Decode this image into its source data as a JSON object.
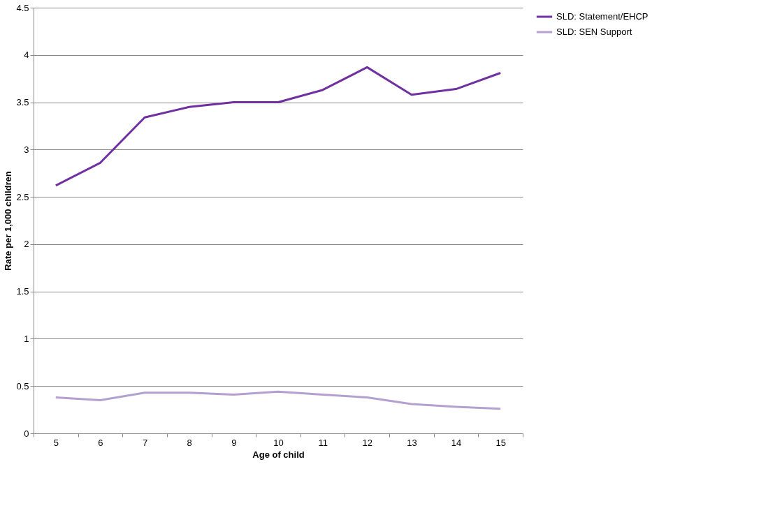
{
  "chart_data": {
    "type": "line",
    "xlabel": "Age of child",
    "ylabel": "Rate per 1,000 children",
    "categories": [
      "5",
      "6",
      "7",
      "8",
      "9",
      "10",
      "11",
      "12",
      "13",
      "14",
      "15"
    ],
    "series": [
      {
        "name": "SLD: Statement/EHCP",
        "color": "#7030a0",
        "values": [
          2.62,
          2.86,
          3.34,
          3.45,
          3.5,
          3.5,
          3.63,
          3.87,
          3.58,
          3.64,
          3.81
        ]
      },
      {
        "name": "SLD: SEN Support",
        "color": "#b4a0d0",
        "values": [
          0.38,
          0.35,
          0.43,
          0.43,
          0.41,
          0.44,
          0.41,
          0.38,
          0.31,
          0.28,
          0.26
        ]
      }
    ],
    "ylim": [
      0,
      4.5
    ],
    "yticks": [
      0,
      0.5,
      1,
      1.5,
      2,
      2.5,
      3,
      3.5,
      4,
      4.5
    ],
    "grid": "y",
    "legend": "right",
    "marker": "none",
    "line_style": "solid"
  }
}
